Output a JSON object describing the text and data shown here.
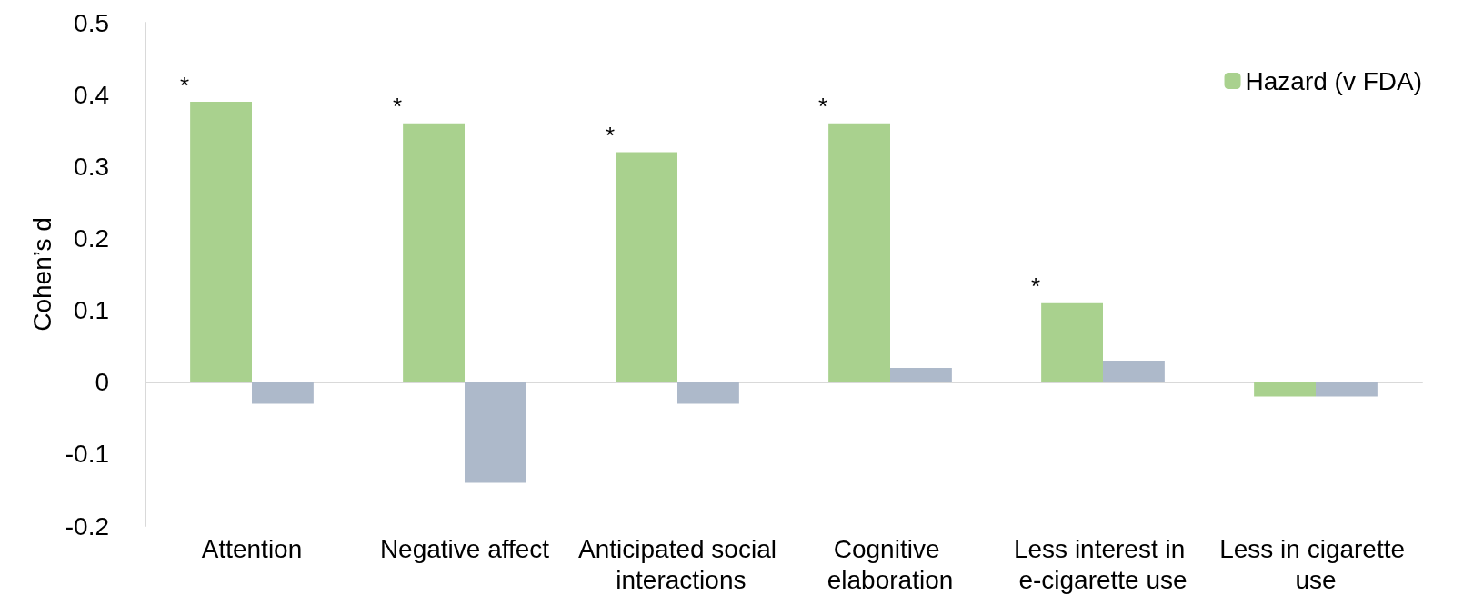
{
  "chart_data": {
    "type": "bar",
    "ylabel": "Cohen’s d",
    "categories": [
      "Attention",
      "Negative affect",
      "Anticipated social interactions",
      "Cognitive elaboration",
      "Less interest in e-cigarette use",
      "Less in cigarette use"
    ],
    "series": [
      {
        "name": "Hazard (v FDA)",
        "color": "#a9d18e",
        "values": [
          0.39,
          0.36,
          0.32,
          0.36,
          0.11,
          -0.02
        ]
      },
      {
        "color": "#adb9ca",
        "values": [
          -0.03,
          -0.14,
          -0.03,
          0.02,
          0.03,
          -0.02
        ]
      }
    ],
    "ylim": [
      -0.2,
      0.5
    ],
    "yticks": [
      -0.2,
      -0.1,
      0,
      0.1,
      0.2,
      0.3,
      0.4,
      0.5
    ],
    "legend": "top right",
    "annotations": [
      {
        "text": "*",
        "x": "Attention",
        "y": 0.39
      },
      {
        "text": "*",
        "x": "Negative affect",
        "y": 0.36
      },
      {
        "text": "*",
        "x": "Anticipated social interactions",
        "y": 0.32
      },
      {
        "text": "*",
        "x": "Cognitive elaboration",
        "y": 0.36
      },
      {
        "text": "*",
        "x": "Less interest in e-cigarette use",
        "y": 0.11
      }
    ]
  }
}
